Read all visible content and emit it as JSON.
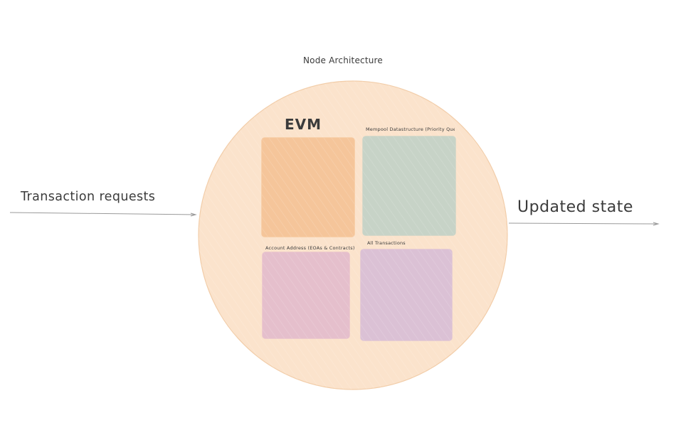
{
  "diagram": {
    "title": "Node Architecture",
    "boxes": [
      {
        "id": "evm",
        "label": "EVM",
        "color": "#f5c59a"
      },
      {
        "id": "mempool",
        "label": "Mempool Datastructure (Priority Queue",
        "color": "#c7d3c7"
      },
      {
        "id": "accounts",
        "label": "Account Address (EOAs & Contracts)",
        "color": "#e5bfcc"
      },
      {
        "id": "transactions",
        "label": "All Transactions",
        "color": "#dbc1d5"
      }
    ],
    "input_label": "Transaction requests",
    "output_label": "Updated state",
    "colors": {
      "node_fill": "#fbe3cc",
      "node_stroke": "#f2cda9",
      "arrow": "#9a9a9a",
      "text": "#3b3b3b"
    }
  }
}
